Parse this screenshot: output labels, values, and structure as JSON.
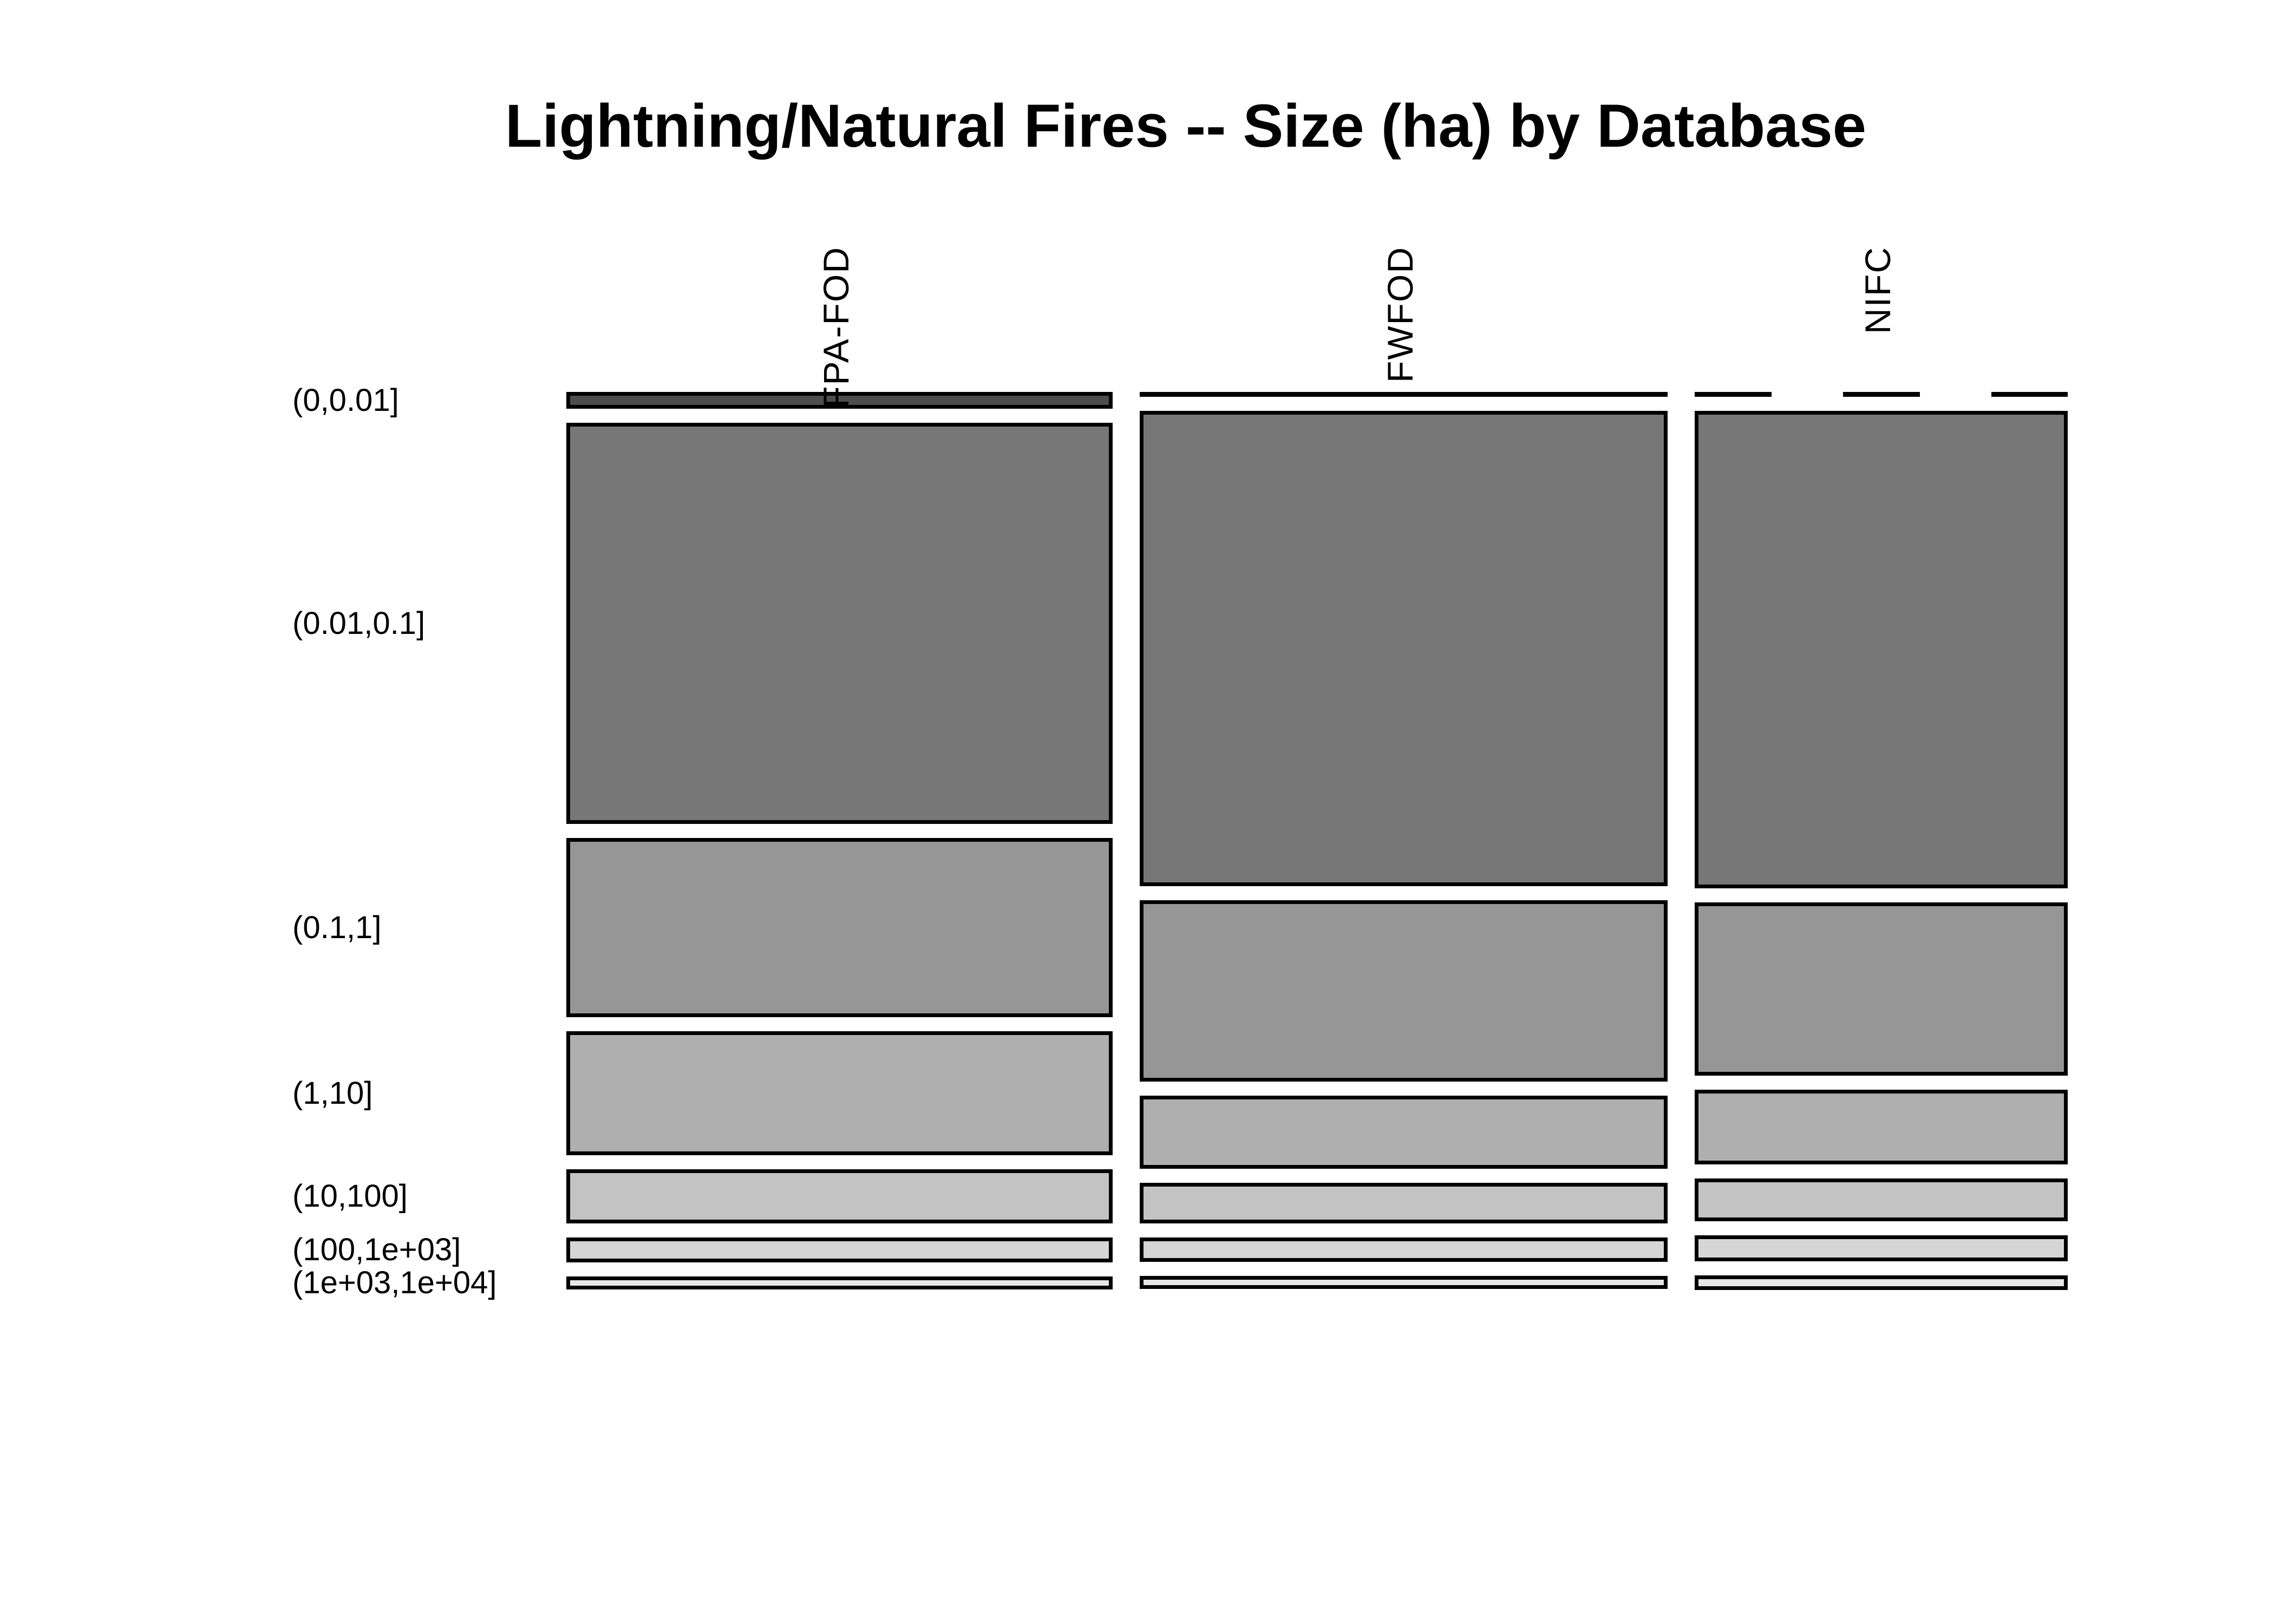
{
  "title": "Lightning/Natural Fires -- Size (ha) by Database",
  "chart_data": {
    "type": "mosaic",
    "title": "Lightning/Natural Fires -- Size (ha) by Database",
    "xlabel": "",
    "ylabel": "",
    "grid": false,
    "legend_position": "none",
    "background": "#FFFFFF",
    "border_color": "#000000",
    "columns": [
      "FPA-FOD",
      "FWFOD",
      "NIFC"
    ],
    "rows": [
      "(0,0.01]",
      "(0.01,0.1]",
      "(0.1,1]",
      "(1,10]",
      "(10,100]",
      "(100,1e+03]",
      "(1e+03,1e+04]"
    ],
    "row_colors": [
      "#4D4D4D",
      "#777777",
      "#969696",
      "#AFAFAF",
      "#C3C3C3",
      "#D6D6D6",
      "#E6E6E6"
    ],
    "column_width_share": [
      0.378,
      0.365,
      0.257
    ],
    "row_share_by_column": {
      "FPA-FOD": [
        0.012,
        0.518,
        0.226,
        0.153,
        0.061,
        0.023,
        0.007
      ],
      "FWFOD": [
        0.001,
        0.613,
        0.228,
        0.086,
        0.043,
        0.022,
        0.007
      ],
      "NIFC": [
        0.0,
        0.616,
        0.217,
        0.088,
        0.046,
        0.024,
        0.009
      ]
    },
    "zero_cells": [
      {
        "column": "FWFOD",
        "row": "(0,0.01]",
        "style": "solid-hairline"
      },
      {
        "column": "NIFC",
        "row": "(0,0.01]",
        "style": "dashed-line"
      }
    ]
  }
}
